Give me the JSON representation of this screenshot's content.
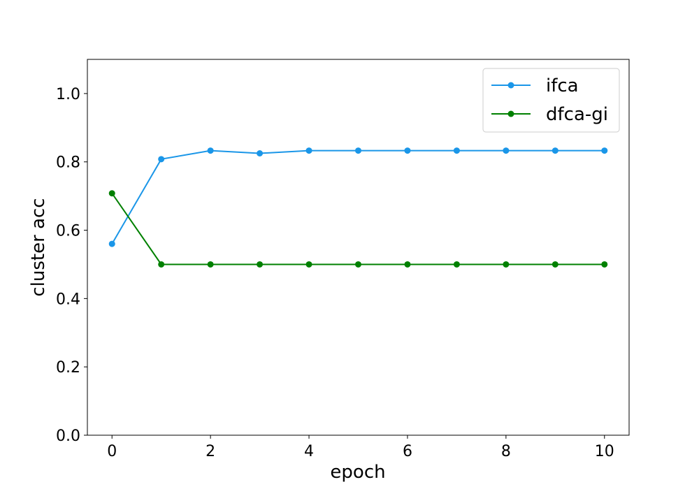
{
  "chart_data": {
    "type": "line",
    "title": "",
    "xlabel": "epoch",
    "ylabel": "cluster acc",
    "xlim": [
      -0.5,
      10.5
    ],
    "ylim": [
      0.0,
      1.1
    ],
    "x": [
      0,
      1,
      2,
      3,
      4,
      5,
      6,
      7,
      8,
      9,
      10
    ],
    "x_ticks": [
      "0",
      "2",
      "4",
      "6",
      "8",
      "10"
    ],
    "y_ticks": [
      "0.0",
      "0.2",
      "0.4",
      "0.6",
      "0.8",
      "1.0"
    ],
    "grid": false,
    "legend_position": "top-right",
    "series": [
      {
        "name": "ifca",
        "color": "#1a96e8",
        "marker": "circle",
        "values": [
          0.56,
          0.808,
          0.833,
          0.825,
          0.833,
          0.833,
          0.833,
          0.833,
          0.833,
          0.833,
          0.833
        ]
      },
      {
        "name": "dfca-gi",
        "color": "#008000",
        "marker": "circle",
        "values": [
          0.708,
          0.5,
          0.5,
          0.5,
          0.5,
          0.5,
          0.5,
          0.5,
          0.5,
          0.5,
          0.5
        ]
      }
    ]
  }
}
